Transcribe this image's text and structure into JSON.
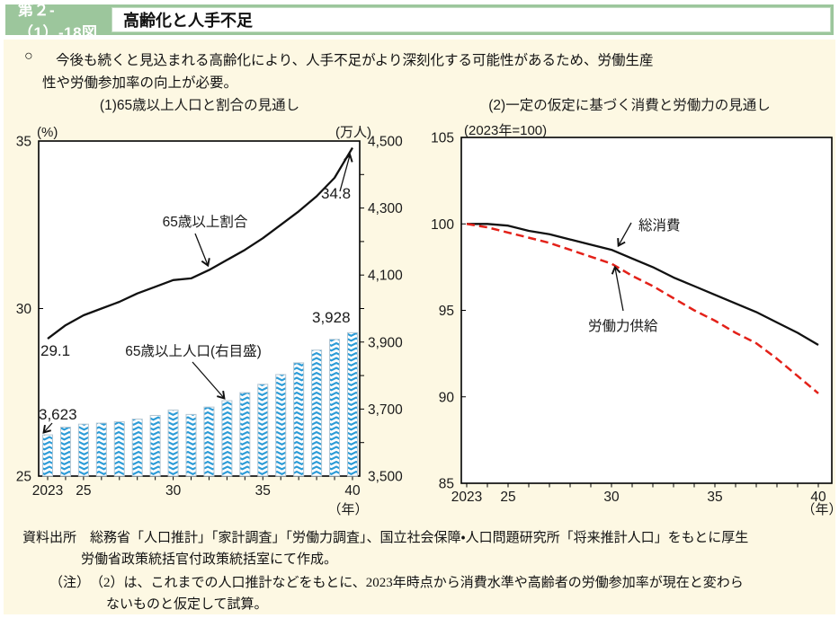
{
  "header": {
    "figure_no": "第２-（1）-18図",
    "title": "高齢化と人手不足"
  },
  "lead": {
    "marker": "○",
    "line1": "今後も続くと見込まれる高齢化により、人手不足がより深刻化する可能性があるため、労働生産",
    "line2": "性や労働参加率の向上が必要。"
  },
  "colors": {
    "band_green": "#9cc69c",
    "panel_cream": "#fdf8e3",
    "bar_blue": "#2b9bd7",
    "line_black": "#111111",
    "dashed_red": "#e32119"
  },
  "chart_data": [
    {
      "type": "bar+line",
      "title": "(1)65歳以上人口と割合の見通し",
      "years": [
        2023,
        2024,
        2025,
        2026,
        2027,
        2028,
        2029,
        2030,
        2031,
        2032,
        2033,
        2034,
        2035,
        2036,
        2037,
        2038,
        2039,
        2040
      ],
      "x_tick_labels": [
        {
          "i": 0,
          "label": "2023"
        },
        {
          "i": 2,
          "label": "25"
        },
        {
          "i": 7,
          "label": "30"
        },
        {
          "i": 12,
          "label": "35"
        },
        {
          "i": 17,
          "label": "40"
        }
      ],
      "x_unit": "（年）",
      "left_axis": {
        "unit": "(%)",
        "range": [
          25,
          35
        ],
        "ticks": [
          {
            "v": 35,
            "label": "35"
          },
          {
            "v": 30,
            "label": "30"
          },
          {
            "v": 25,
            "label": "25"
          }
        ]
      },
      "right_axis": {
        "unit": "(万人)",
        "range": [
          3500,
          4500
        ],
        "minor_step": 100,
        "ticks": [
          {
            "v": 4500,
            "label": "4,500"
          },
          {
            "v": 4300,
            "label": "4,300"
          },
          {
            "v": 4100,
            "label": "4,100"
          },
          {
            "v": 3900,
            "label": "3,900"
          },
          {
            "v": 3700,
            "label": "3,700"
          },
          {
            "v": 3500,
            "label": "3,500"
          }
        ]
      },
      "line_series": {
        "name": "65歳以上割合",
        "values": [
          29.1,
          29.5,
          29.8,
          30.0,
          30.2,
          30.45,
          30.65,
          30.85,
          30.9,
          31.15,
          31.45,
          31.75,
          32.1,
          32.5,
          32.9,
          33.35,
          33.9,
          34.8
        ]
      },
      "bar_series": {
        "name": "65歳以上人口(右目盛)",
        "values": [
          3623,
          3646,
          3655,
          3658,
          3662,
          3670,
          3681,
          3697,
          3684,
          3706,
          3725,
          3749,
          3774,
          3803,
          3838,
          3876,
          3908,
          3928
        ]
      },
      "annotations": {
        "ratio_start": "29.1",
        "ratio_end": "34.8",
        "bar_start": "3,623",
        "bar_end": "3,928"
      }
    },
    {
      "type": "line",
      "title": "(2)一定の仮定に基づく消費と労働力の見通し",
      "subtitle": "(2023年=100)",
      "years": [
        2023,
        2024,
        2025,
        2026,
        2027,
        2028,
        2029,
        2030,
        2031,
        2032,
        2033,
        2034,
        2035,
        2036,
        2037,
        2038,
        2039,
        2040
      ],
      "x_tick_labels": [
        {
          "i": 0,
          "label": "2023"
        },
        {
          "i": 2,
          "label": "25"
        },
        {
          "i": 7,
          "label": "30"
        },
        {
          "i": 12,
          "label": "35"
        },
        {
          "i": 17,
          "label": "40"
        }
      ],
      "x_unit": "（年）",
      "y_axis": {
        "range": [
          85,
          105
        ],
        "ticks": [
          {
            "v": 105,
            "label": "105"
          },
          {
            "v": 100,
            "label": "100"
          },
          {
            "v": 95,
            "label": "95"
          },
          {
            "v": 90,
            "label": "90"
          },
          {
            "v": 85,
            "label": "85"
          }
        ]
      },
      "series": [
        {
          "name": "総消費",
          "style": "solid",
          "values": [
            100,
            100,
            99.9,
            99.6,
            99.4,
            99.1,
            98.8,
            98.5,
            98.0,
            97.5,
            96.9,
            96.4,
            95.9,
            95.4,
            94.9,
            94.3,
            93.7,
            93.0
          ]
        },
        {
          "name": "労働力供給",
          "style": "dashed",
          "values": [
            100,
            99.8,
            99.5,
            99.2,
            98.9,
            98.5,
            98.1,
            97.7,
            97.0,
            96.4,
            95.7,
            95.0,
            94.4,
            93.7,
            93.1,
            92.2,
            91.2,
            90.2
          ]
        }
      ]
    }
  ],
  "footer": {
    "source_line1": "資料出所　総務省「人口推計」「家計調査」「労働力調査」、国立社会保障・人口問題研究所「将来推計人口」をもとに厚生",
    "source_line2": "労働省政策統括官付政策統括室にて作成。",
    "note_line1": "（注）　（2）は、これまでの人口推計などをもとに、2023年時点から消費水準や高齢者の労働参加率が現在と変わら",
    "note_line2": "ないものと仮定して試算。"
  }
}
